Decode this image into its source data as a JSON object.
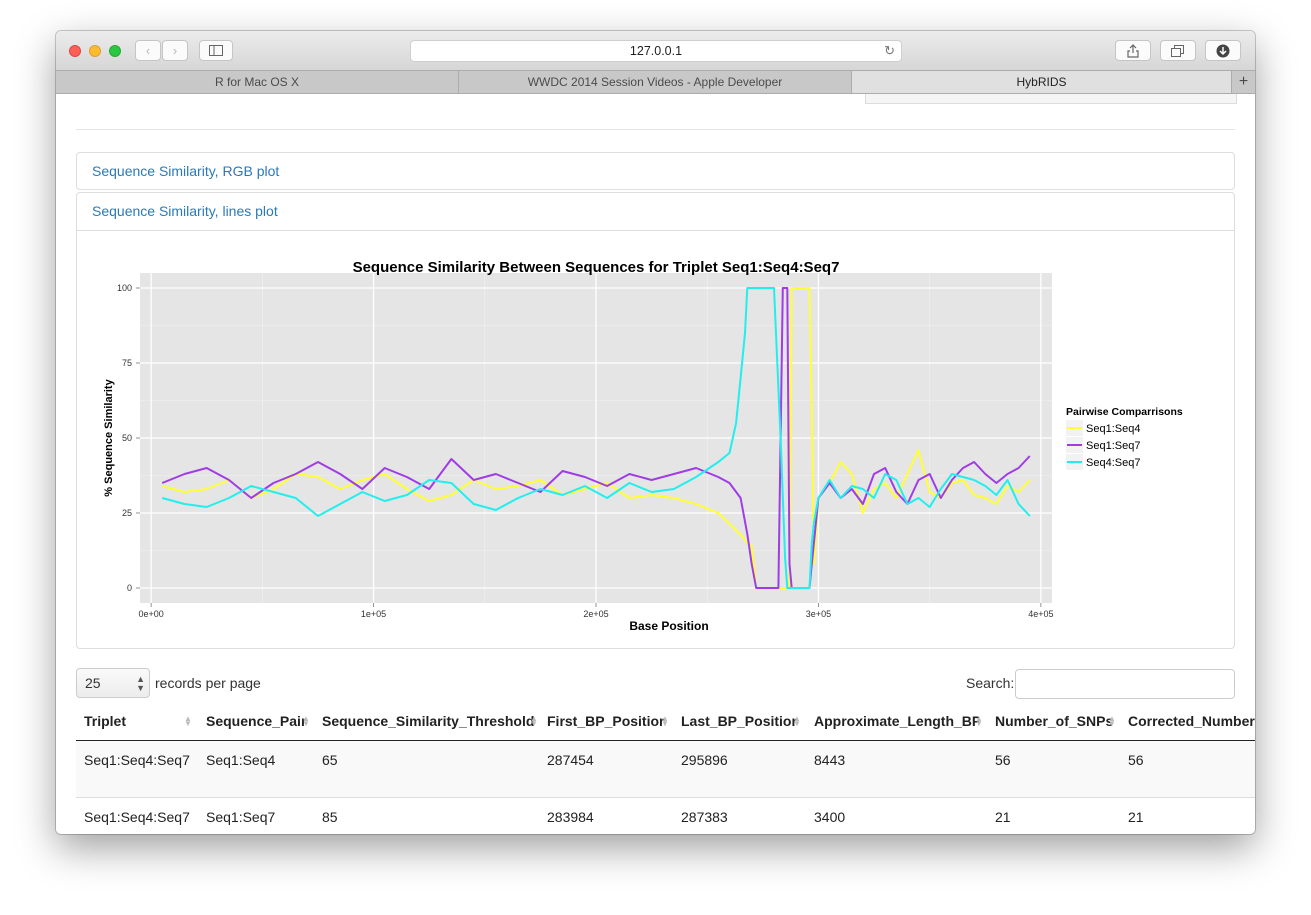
{
  "browser": {
    "url": "127.0.0.1",
    "tabs": [
      {
        "label": "R for Mac OS X",
        "active": false
      },
      {
        "label": "WWDC 2014 Session Videos - Apple Developer",
        "active": false
      },
      {
        "label": "HybRIDS",
        "active": true
      }
    ],
    "new_tab_label": "+"
  },
  "panels": {
    "rgb_title": "Sequence Similarity, RGB plot",
    "lines_title": "Sequence Similarity, lines plot"
  },
  "chart_data": {
    "type": "line",
    "title": "Sequence Similarity Between Sequences for Triplet Seq1:Seq4:Seq7",
    "xlabel": "Base Position",
    "ylabel": "% Sequence Similarity",
    "xlim": [
      -5000,
      405000
    ],
    "ylim": [
      -5,
      105
    ],
    "x_ticks": [
      0,
      100000,
      200000,
      300000,
      400000
    ],
    "x_tick_labels": [
      "0e+00",
      "1e+05",
      "2e+05",
      "3e+05",
      "4e+05"
    ],
    "y_ticks": [
      0,
      25,
      50,
      75,
      100
    ],
    "y_tick_labels": [
      "0",
      "25",
      "50",
      "75",
      "100"
    ],
    "grid": true,
    "legend": {
      "title": "Pairwise Comparrisons",
      "position": "right"
    },
    "series": [
      {
        "name": "Seq1:Seq4",
        "color": "#ffff33",
        "x": [
          5000,
          15000,
          25000,
          35000,
          45000,
          55000,
          65000,
          75000,
          85000,
          95000,
          105000,
          115000,
          125000,
          135000,
          145000,
          155000,
          165000,
          175000,
          185000,
          195000,
          205000,
          215000,
          225000,
          235000,
          245000,
          255000,
          262000,
          266000,
          268000,
          270000,
          272000,
          280000,
          285000,
          287000,
          288000,
          290000,
          292000,
          294000,
          296000,
          297000,
          298000,
          300000,
          305000,
          310000,
          315000,
          320000,
          325000,
          330000,
          335000,
          340000,
          345000,
          350000,
          355000,
          360000,
          365000,
          370000,
          375000,
          380000,
          385000,
          390000,
          395000
        ],
        "y": [
          34,
          32,
          33,
          36,
          30,
          33,
          38,
          37,
          33,
          36,
          38,
          33,
          29,
          31,
          36,
          33,
          34,
          36,
          31,
          33,
          35,
          30,
          31,
          30,
          28,
          25,
          20,
          17,
          15,
          14,
          0,
          0,
          0,
          0,
          100,
          100,
          100,
          100,
          100,
          60,
          8,
          30,
          35,
          42,
          38,
          25,
          33,
          35,
          30,
          38,
          46,
          32,
          30,
          35,
          36,
          31,
          30,
          28,
          34,
          32,
          36
        ]
      },
      {
        "name": "Seq1:Seq7",
        "color": "#a03ce6",
        "x": [
          5000,
          15000,
          25000,
          35000,
          45000,
          55000,
          65000,
          75000,
          85000,
          95000,
          105000,
          115000,
          125000,
          135000,
          145000,
          155000,
          165000,
          175000,
          185000,
          195000,
          205000,
          215000,
          225000,
          235000,
          245000,
          255000,
          260000,
          265000,
          268000,
          270000,
          272000,
          275000,
          280000,
          282000,
          283000,
          284000,
          286000,
          287000,
          288000,
          290000,
          292000,
          294000,
          296000,
          297000,
          300000,
          305000,
          310000,
          315000,
          320000,
          325000,
          330000,
          335000,
          340000,
          345000,
          350000,
          355000,
          360000,
          365000,
          370000,
          375000,
          380000,
          385000,
          390000,
          395000
        ],
        "y": [
          35,
          38,
          40,
          36,
          30,
          35,
          38,
          42,
          38,
          33,
          40,
          37,
          33,
          43,
          36,
          38,
          35,
          32,
          39,
          37,
          34,
          38,
          36,
          38,
          40,
          37,
          35,
          30,
          18,
          8,
          0,
          0,
          0,
          0,
          50,
          100,
          100,
          8,
          0,
          0,
          0,
          0,
          0,
          8,
          30,
          35,
          30,
          33,
          28,
          38,
          40,
          32,
          28,
          36,
          38,
          30,
          36,
          40,
          42,
          38,
          35,
          38,
          40,
          44
        ]
      },
      {
        "name": "Seq4:Seq7",
        "color": "#22eeee",
        "x": [
          5000,
          15000,
          25000,
          35000,
          45000,
          55000,
          65000,
          75000,
          85000,
          95000,
          105000,
          115000,
          125000,
          135000,
          145000,
          155000,
          165000,
          175000,
          185000,
          195000,
          205000,
          215000,
          225000,
          235000,
          245000,
          255000,
          260000,
          263000,
          265000,
          267000,
          268000,
          269000,
          270000,
          272000,
          274000,
          276000,
          278000,
          280000,
          283000,
          285000,
          286000,
          287000,
          288000,
          290000,
          292000,
          294000,
          296000,
          297000,
          298000,
          300000,
          305000,
          310000,
          315000,
          320000,
          325000,
          330000,
          335000,
          340000,
          345000,
          350000,
          355000,
          360000,
          365000,
          370000,
          375000,
          380000,
          385000,
          390000,
          395000
        ],
        "y": [
          30,
          28,
          27,
          30,
          34,
          32,
          30,
          24,
          28,
          32,
          29,
          31,
          36,
          35,
          28,
          26,
          30,
          33,
          31,
          34,
          30,
          35,
          32,
          33,
          37,
          42,
          45,
          55,
          70,
          85,
          100,
          100,
          100,
          100,
          100,
          100,
          100,
          100,
          50,
          10,
          0,
          0,
          0,
          0,
          0,
          0,
          0,
          15,
          22,
          30,
          36,
          30,
          34,
          33,
          30,
          38,
          36,
          28,
          30,
          27,
          33,
          38,
          37,
          36,
          34,
          31,
          36,
          28,
          24
        ]
      }
    ]
  },
  "table": {
    "length_value": "25",
    "length_label": "records per page",
    "search_label": "Search:",
    "search_value": "",
    "columns": [
      "Triplet",
      "Sequence_Pair",
      "Sequence_Similarity_Threshold",
      "First_BP_Position",
      "Last_BP_Position",
      "Approximate_Length_BP",
      "Number_of_SNPs",
      "Corrected_Number"
    ],
    "rows": [
      [
        "Seq1:Seq4:Seq7",
        "Seq1:Seq4",
        "65",
        "287454",
        "295896",
        "8443",
        "56",
        "56"
      ],
      [
        "Seq1:Seq4:Seq7",
        "Seq1:Seq7",
        "85",
        "283984",
        "287383",
        "3400",
        "21",
        "21"
      ]
    ]
  }
}
